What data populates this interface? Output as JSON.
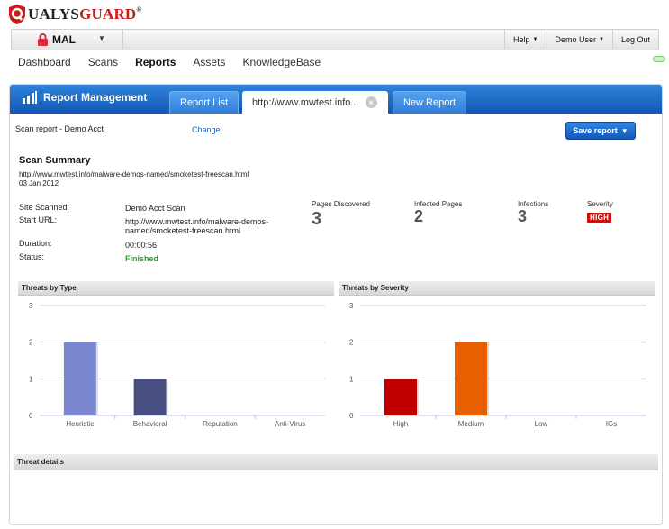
{
  "brand": {
    "logo_first": "Q",
    "logo_ualys": "UALYS",
    "logo_guard": "GUARD",
    "logo_reg": "®"
  },
  "toolbar": {
    "subscription": "MAL",
    "links": [
      {
        "label": "Help",
        "has_caret": true
      },
      {
        "label": "Demo User",
        "has_caret": true
      },
      {
        "label": "Log Out",
        "has_caret": false
      }
    ]
  },
  "nav": {
    "items": [
      {
        "label": "Dashboard",
        "active": false
      },
      {
        "label": "Scans",
        "active": false
      },
      {
        "label": "Reports",
        "active": true
      },
      {
        "label": "Assets",
        "active": false
      },
      {
        "label": "KnowledgeBase",
        "active": false
      }
    ]
  },
  "panel": {
    "title": "Report Management",
    "tabs": {
      "report_list": "Report List",
      "current": "http://www.mwtest.info...",
      "new_report": "New Report"
    }
  },
  "report": {
    "label": "Scan report - Demo Acct",
    "change_link": "Change",
    "save_button": "Save report"
  },
  "summary": {
    "title": "Scan Summary",
    "url": "http://www.mwtest.info/malware-demos-named/smoketest-freescan.html",
    "date": "03 Jan 2012",
    "fields": {
      "site_scanned_label": "Site Scanned:",
      "site_scanned_value": "Demo Acct Scan",
      "start_url_label": "Start URL:",
      "start_url_line1": "http://www.mwtest.info/malware-demos-",
      "start_url_line2": "named/smoketest-freescan.html",
      "duration_label": "Duration:",
      "duration_value": "00:00:56",
      "status_label": "Status:",
      "status_value": "Finished"
    },
    "stats": {
      "pages_discovered_label": "Pages Discovered",
      "pages_discovered_value": "3",
      "infected_pages_label": "Infected Pages",
      "infected_pages_value": "2",
      "infections_label": "Infections",
      "infections_value": "3",
      "severity_label": "Severity",
      "severity_value": "HIGH"
    }
  },
  "colors": {
    "header_blue": "#1a66c4",
    "status_green": "#2aa02a",
    "badge_red": "#cc1111"
  },
  "chart_data": [
    {
      "type": "bar",
      "title": "Threats by Type",
      "categories": [
        "Heuristic",
        "Behavioral",
        "Reputation",
        "Anti-Virus"
      ],
      "values": [
        2,
        1,
        0,
        0
      ],
      "colors": [
        "#7b87cf",
        "#474e80",
        "#7b87cf",
        "#7b87cf"
      ],
      "ylim": [
        0,
        3
      ],
      "yticks": [
        0,
        1,
        2,
        3
      ],
      "grid": true
    },
    {
      "type": "bar",
      "title": "Threats by Severity",
      "categories": [
        "High",
        "Medium",
        "Low",
        "IGs"
      ],
      "values": [
        1,
        2,
        0,
        0
      ],
      "colors": [
        "#c00000",
        "#e66000",
        "#999999",
        "#999999"
      ],
      "ylim": [
        0,
        3
      ],
      "yticks": [
        0,
        1,
        2,
        3
      ],
      "grid": true
    }
  ],
  "details": {
    "title": "Threat details"
  }
}
